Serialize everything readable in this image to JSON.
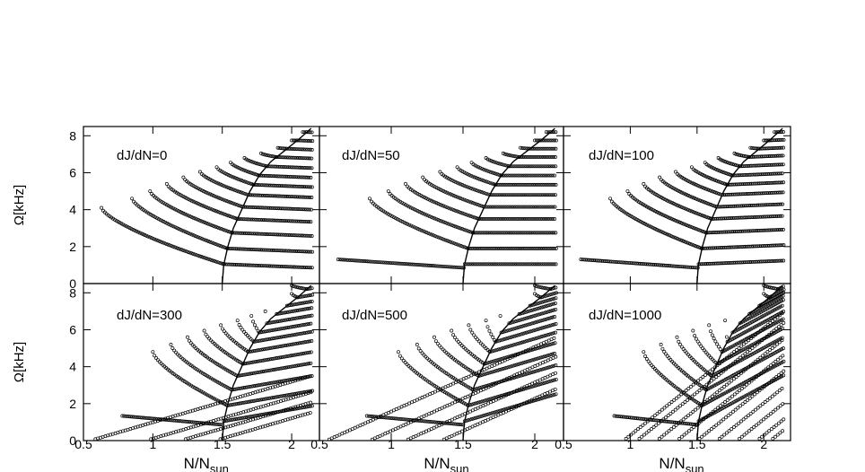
{
  "chart_data": {
    "type": "scatter",
    "layout": "2x3 grid of panels sharing axes",
    "xlabel": {
      "main": "N/N",
      "sub": "sun"
    },
    "ylabel": "Ω[kHz]",
    "xlim": [
      0.5,
      2.2
    ],
    "ylim": [
      0,
      8.5
    ],
    "x_ticks": [
      0.5,
      1,
      1.5,
      2
    ],
    "y_ticks": [
      0,
      2,
      4,
      6,
      8
    ],
    "grid": false,
    "panels": [
      {
        "label": "dJ/dN=0",
        "row": 0,
        "col": 0
      },
      {
        "label": "dJ/dN=50",
        "row": 0,
        "col": 1
      },
      {
        "label": "dJ/dN=100",
        "row": 0,
        "col": 2
      },
      {
        "label": "dJ/dN=300",
        "row": 1,
        "col": 0
      },
      {
        "label": "dJ/dN=500",
        "row": 1,
        "col": 1
      },
      {
        "label": "dJ/dN=1000",
        "row": 1,
        "col": 2
      }
    ],
    "boundary_curve": {
      "x": [
        1.5,
        1.51,
        1.54,
        1.58,
        1.64,
        1.7,
        1.77,
        1.85,
        1.95,
        2.05,
        2.14
      ],
      "y": [
        0,
        1,
        2,
        3,
        4,
        5,
        5.9,
        6.6,
        7.2,
        7.8,
        8.4
      ]
    },
    "branches_dJdN_0": [
      {
        "x0": 0.63,
        "y0": 4.1,
        "y_end": 1.05
      },
      {
        "x0": 0.85,
        "y0": 4.6,
        "y_end": 1.9
      },
      {
        "x0": 0.98,
        "y0": 5.0,
        "y_end": 2.75
      },
      {
        "x0": 1.1,
        "y0": 5.4,
        "y_end": 3.5
      },
      {
        "x0": 1.22,
        "y0": 5.75,
        "y_end": 4.15
      },
      {
        "x0": 1.34,
        "y0": 6.05,
        "y_end": 4.8
      },
      {
        "x0": 1.46,
        "y0": 6.3,
        "y_end": 5.35
      },
      {
        "x0": 1.56,
        "y0": 6.55,
        "y_end": 5.85
      },
      {
        "x0": 1.66,
        "y0": 6.8,
        "y_end": 6.35
      },
      {
        "x0": 1.78,
        "y0": 7.05,
        "y_end": 6.85
      },
      {
        "x0": 1.9,
        "y0": 7.35,
        "y_end": 7.3
      },
      {
        "x0": 2.0,
        "y0": 7.75,
        "y_end": 7.75
      },
      {
        "x0": 2.08,
        "y0": 8.2,
        "y_end": 8.2
      }
    ]
  }
}
